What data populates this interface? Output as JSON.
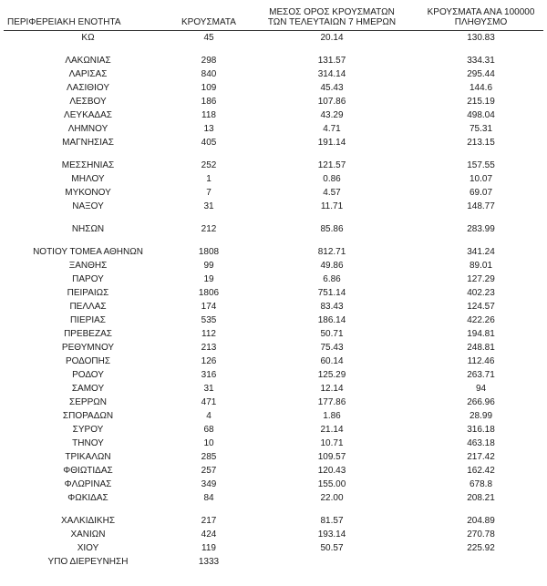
{
  "table": {
    "headers": [
      [
        "ΠΕΡΙΦΕΡΕΙΑΚΗ ΕΝΟΤΗΤΑ"
      ],
      [
        "ΚΡΟΥΣΜΑΤΑ"
      ],
      [
        "ΜΕΣΟΣ ΟΡΟΣ ΚΡΟΥΣΜΑΤΩΝ",
        "ΤΩΝ ΤΕΛΕΥΤΑΙΩΝ 7 ΗΜΕΡΩΝ"
      ],
      [
        "ΚΡΟΥΣΜΑΤΑ ΑΝΑ 100000",
        "ΠΛΗΘΥΣΜΟ"
      ]
    ],
    "rows": [
      [
        "ΚΩ",
        "45",
        "20.14",
        "130.83"
      ],
      "gap",
      [
        "ΛΑΚΩΝΙΑΣ",
        "298",
        "131.57",
        "334.31"
      ],
      [
        "ΛΑΡΙΣΑΣ",
        "840",
        "314.14",
        "295.44"
      ],
      [
        "ΛΑΣΙΘΙΟΥ",
        "109",
        "45.43",
        "144.6"
      ],
      [
        "ΛΕΣΒΟΥ",
        "186",
        "107.86",
        "215.19"
      ],
      [
        "ΛΕΥΚΑΔΑΣ",
        "118",
        "43.29",
        "498.04"
      ],
      [
        "ΛΗΜΝΟΥ",
        "13",
        "4.71",
        "75.31"
      ],
      [
        "ΜΑΓΝΗΣΙΑΣ",
        "405",
        "191.14",
        "213.15"
      ],
      "gap",
      [
        "ΜΕΣΣΗΝΙΑΣ",
        "252",
        "121.57",
        "157.55"
      ],
      [
        "ΜΗΛΟΥ",
        "1",
        "0.86",
        "10.07"
      ],
      [
        "ΜΥΚΟΝΟΥ",
        "7",
        "4.57",
        "69.07"
      ],
      [
        "ΝΑΞΟΥ",
        "31",
        "11.71",
        "148.77"
      ],
      "gap",
      [
        "ΝΗΣΩΝ",
        "212",
        "85.86",
        "283.99"
      ],
      "gap",
      [
        "ΝΟΤΙΟΥ ΤΟΜΕΑ ΑΘΗΝΩΝ",
        "1808",
        "812.71",
        "341.24"
      ],
      [
        "ΞΑΝΘΗΣ",
        "99",
        "49.86",
        "89.01"
      ],
      [
        "ΠΑΡΟΥ",
        "19",
        "6.86",
        "127.29"
      ],
      [
        "ΠΕΙΡΑΙΩΣ",
        "1806",
        "751.14",
        "402.23"
      ],
      [
        "ΠΕΛΛΑΣ",
        "174",
        "83.43",
        "124.57"
      ],
      [
        "ΠΙΕΡΙΑΣ",
        "535",
        "186.14",
        "422.26"
      ],
      [
        "ΠΡΕΒΕΖΑΣ",
        "112",
        "50.71",
        "194.81"
      ],
      [
        "ΡΕΘΥΜΝΟΥ",
        "213",
        "75.43",
        "248.81"
      ],
      [
        "ΡΟΔΟΠΗΣ",
        "126",
        "60.14",
        "112.46"
      ],
      [
        "ΡΟΔΟΥ",
        "316",
        "125.29",
        "263.71"
      ],
      [
        "ΣΑΜΟΥ",
        "31",
        "12.14",
        "94"
      ],
      [
        "ΣΕΡΡΩΝ",
        "471",
        "177.86",
        "266.96"
      ],
      [
        "ΣΠΟΡΑΔΩΝ",
        "4",
        "1.86",
        "28.99"
      ],
      [
        "ΣΥΡΟΥ",
        "68",
        "21.14",
        "316.18"
      ],
      [
        "ΤΗΝΟΥ",
        "10",
        "10.71",
        "463.18"
      ],
      [
        "ΤΡΙΚΑΛΩΝ",
        "285",
        "109.57",
        "217.42"
      ],
      [
        "ΦΘΙΩΤΙΔΑΣ",
        "257",
        "120.43",
        "162.42"
      ],
      [
        "ΦΛΩΡΙΝΑΣ",
        "349",
        "155.00",
        "678.8"
      ],
      [
        "ΦΩΚΙΔΑΣ",
        "84",
        "22.00",
        "208.21"
      ],
      "gap",
      [
        "ΧΑΛΚΙΔΙΚΗΣ",
        "217",
        "81.57",
        "204.89"
      ],
      [
        "ΧΑΝΙΩΝ",
        "424",
        "193.14",
        "270.78"
      ],
      [
        "ΧΙΟΥ",
        "119",
        "50.57",
        "225.92"
      ],
      [
        "ΥΠΟ ΔΙΕΡΕΥΝΗΣΗ",
        "1333",
        "",
        ""
      ]
    ]
  }
}
